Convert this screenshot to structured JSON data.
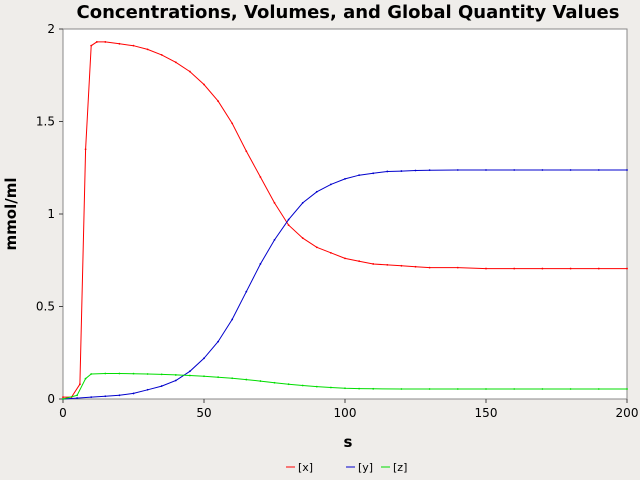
{
  "chart_data": {
    "type": "line",
    "title": "Concentrations, Volumes, and Global Quantity Values",
    "xlabel": "s",
    "ylabel": "mmol/ml",
    "xlim": [
      0,
      200
    ],
    "ylim": [
      0,
      2
    ],
    "xticks": [
      "0",
      "50",
      "100",
      "150",
      "200"
    ],
    "yticks": [
      "0",
      "0.5",
      "1",
      "1.5",
      "2"
    ],
    "grid": false,
    "legend": "bottom-center",
    "series": [
      {
        "name": "[x]",
        "color": "#ff0000",
        "x": [
          0,
          3,
          6,
          8,
          10,
          12,
          15,
          20,
          25,
          30,
          35,
          40,
          45,
          50,
          55,
          60,
          65,
          70,
          75,
          80,
          85,
          90,
          95,
          100,
          105,
          110,
          115,
          120,
          125,
          130,
          140,
          150,
          160,
          170,
          180,
          190,
          200
        ],
        "y": [
          0.01,
          0.01,
          0.08,
          1.35,
          1.91,
          1.93,
          1.93,
          1.92,
          1.91,
          1.89,
          1.86,
          1.82,
          1.77,
          1.7,
          1.61,
          1.49,
          1.34,
          1.2,
          1.06,
          0.94,
          0.87,
          0.82,
          0.79,
          0.76,
          0.745,
          0.73,
          0.725,
          0.72,
          0.715,
          0.71,
          0.71,
          0.705,
          0.705,
          0.705,
          0.705,
          0.705,
          0.705
        ]
      },
      {
        "name": "[y]",
        "color": "#0000cc",
        "x": [
          0,
          5,
          10,
          15,
          20,
          25,
          30,
          35,
          40,
          45,
          50,
          55,
          60,
          65,
          70,
          75,
          80,
          85,
          90,
          95,
          100,
          105,
          110,
          115,
          120,
          125,
          130,
          140,
          150,
          160,
          170,
          180,
          190,
          200
        ],
        "y": [
          0.0,
          0.005,
          0.01,
          0.015,
          0.02,
          0.03,
          0.05,
          0.07,
          0.1,
          0.15,
          0.22,
          0.31,
          0.43,
          0.58,
          0.73,
          0.86,
          0.97,
          1.06,
          1.12,
          1.16,
          1.19,
          1.21,
          1.22,
          1.23,
          1.232,
          1.235,
          1.237,
          1.238,
          1.238,
          1.238,
          1.238,
          1.238,
          1.238,
          1.238
        ]
      },
      {
        "name": "[z]",
        "color": "#00dd00",
        "x": [
          0,
          5,
          8,
          10,
          15,
          20,
          25,
          30,
          35,
          40,
          45,
          50,
          55,
          60,
          65,
          70,
          75,
          80,
          85,
          90,
          95,
          100,
          105,
          110,
          120,
          130,
          140,
          150,
          160,
          170,
          180,
          190,
          200
        ],
        "y": [
          0.0,
          0.02,
          0.11,
          0.135,
          0.138,
          0.138,
          0.137,
          0.135,
          0.133,
          0.13,
          0.127,
          0.123,
          0.118,
          0.112,
          0.105,
          0.097,
          0.088,
          0.08,
          0.073,
          0.067,
          0.062,
          0.058,
          0.056,
          0.055,
          0.054,
          0.054,
          0.054,
          0.054,
          0.054,
          0.054,
          0.054,
          0.054,
          0.054
        ]
      }
    ]
  }
}
